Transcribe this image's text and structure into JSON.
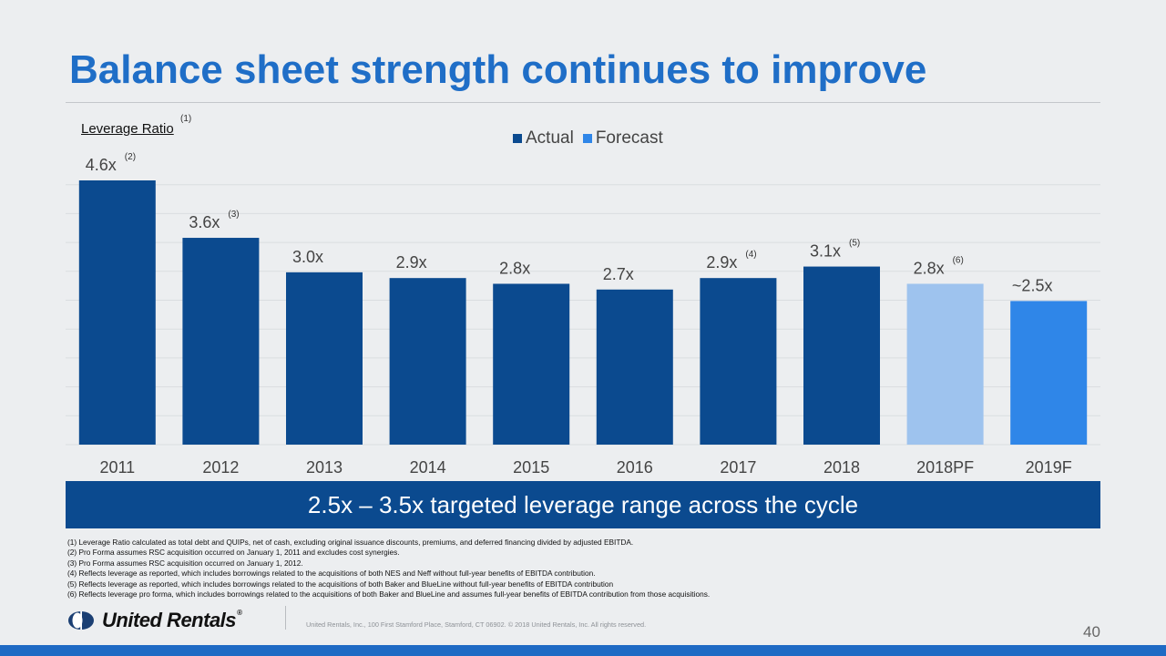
{
  "header": {
    "title": "Balance sheet strength continues to improve"
  },
  "chart_data": {
    "type": "bar",
    "ylabel": "Leverage Ratio",
    "ylabel_note": "(1)",
    "categories": [
      "2011",
      "2012",
      "2013",
      "2014",
      "2015",
      "2016",
      "2017",
      "2018",
      "2018PF",
      "2019F"
    ],
    "values": [
      4.6,
      3.6,
      3.0,
      2.9,
      2.8,
      2.7,
      2.9,
      3.1,
      2.8,
      2.5
    ],
    "labels": [
      "4.6x",
      "3.6x",
      "3.0x",
      "2.9x",
      "2.8x",
      "2.7x",
      "2.9x",
      "3.1x",
      "2.8x",
      "~2.5x"
    ],
    "label_notes": [
      "(2)",
      "(3)",
      "",
      "",
      "",
      "",
      "(4)",
      "(5)",
      "(6)",
      ""
    ],
    "kinds": [
      "Actual",
      "Actual",
      "Actual",
      "Actual",
      "Actual",
      "Actual",
      "Actual",
      "Actual",
      "Forecast-light",
      "Forecast"
    ],
    "legend": [
      {
        "name": "Actual",
        "color": "#0b4a8f"
      },
      {
        "name": "Forecast",
        "color": "#2f86e8"
      }
    ],
    "colors": {
      "Actual": "#0b4a8f",
      "Forecast-light": "#9ec3ee",
      "Forecast": "#2f86e8"
    },
    "ylim": [
      0,
      4.6
    ],
    "grid": true,
    "legend_position": "top"
  },
  "banner": {
    "text": "2.5x – 3.5x targeted leverage range across the cycle"
  },
  "footnotes": [
    "(1) Leverage Ratio calculated as total debt and QUIPs, net of cash, excluding original issuance discounts, premiums, and deferred financing divided by adjusted EBITDA.",
    "(2) Pro Forma assumes RSC acquisition occurred on January 1, 2011 and excludes cost synergies.",
    "(3) Pro Forma assumes RSC acquisition occurred on January 1, 2012.",
    "(4) Reflects leverage as reported, which includes borrowings related to the acquisitions of both NES and Neff without full-year benefits of EBITDA contribution.",
    "(5) Reflects leverage as reported, which includes borrowings related to the acquisitions of both Baker and BlueLine without full-year benefits of EBITDA contribution",
    "(6) Reflects leverage pro forma, which includes borrowings related to the acquisitions of both Baker and BlueLine and assumes full-year benefits of EBITDA contribution from those acquisitions."
  ],
  "footer": {
    "logo_text": "United Rentals",
    "logo_mark": "®",
    "copyright": "United Rentals, Inc., 100 First Stamford Place, Stamford, CT 06902. © 2018 United Rentals, Inc. All rights reserved.",
    "page_number": "40"
  }
}
